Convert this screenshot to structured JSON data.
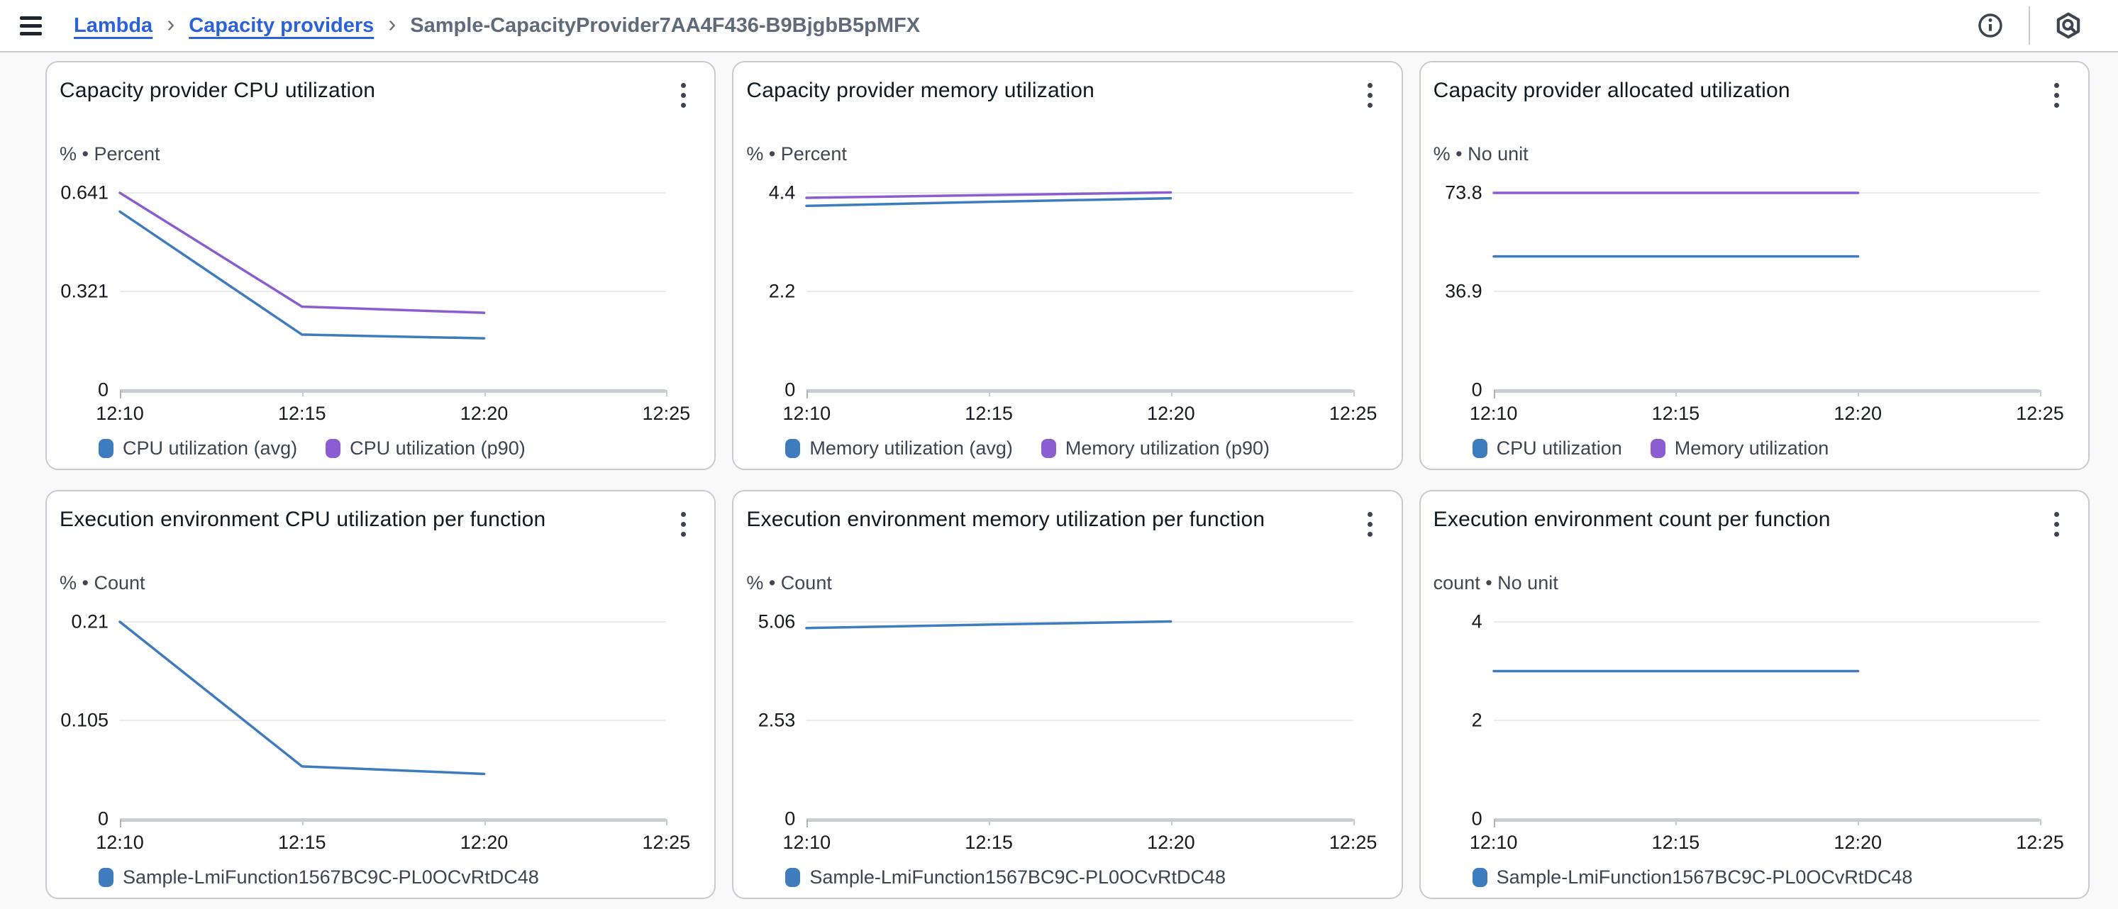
{
  "topbar": {
    "separator": "›",
    "breadcrumb": [
      {
        "label": "Lambda"
      },
      {
        "label": "Capacity providers"
      },
      {
        "label": "Sample-CapacityProvider7AA4F436-B9BjgbB5pMFX"
      }
    ]
  },
  "colors": {
    "link_blue": "#2b62d9",
    "line_blue": "#3e7cbd",
    "line_purple": "#8a5ed0",
    "grid_line": "#e9ebed",
    "axis_line": "#caced2"
  },
  "chart_data": [
    {
      "type": "line",
      "title": "Capacity provider CPU utilization",
      "unit": "% • Percent",
      "y_max": 0.641,
      "y_tick_labels": [
        "0.641",
        "0.321",
        "0"
      ],
      "ylim": [
        0,
        0.641
      ],
      "x_ticks": [
        "12:10",
        "12:15",
        "12:20",
        "12:25"
      ],
      "categories": [
        "12:10",
        "12:15",
        "12:20"
      ],
      "legend_position": "bottom",
      "grid": true,
      "series": [
        {
          "name": "CPU utilization (avg)",
          "color": "#3e7cbd",
          "values": [
            0.58,
            0.18,
            0.168
          ]
        },
        {
          "name": "CPU utilization (p90)",
          "color": "#8a5ed0",
          "values": [
            0.641,
            0.271,
            0.251
          ]
        }
      ]
    },
    {
      "type": "line",
      "title": "Capacity provider memory utilization",
      "unit": "% • Percent",
      "y_max": 4.4,
      "y_tick_labels": [
        "4.4",
        "2.2",
        "0"
      ],
      "ylim": [
        0,
        4.4
      ],
      "x_ticks": [
        "12:10",
        "12:15",
        "12:20",
        "12:25"
      ],
      "categories": [
        "12:10",
        "12:15",
        "12:20"
      ],
      "legend_position": "bottom",
      "grid": true,
      "series": [
        {
          "name": "Memory utilization (avg)",
          "color": "#3e7cbd",
          "values": [
            4.11,
            4.2,
            4.28
          ]
        },
        {
          "name": "Memory utilization (p90)",
          "color": "#8a5ed0",
          "values": [
            4.29,
            4.35,
            4.41
          ]
        }
      ]
    },
    {
      "type": "line",
      "title": "Capacity provider allocated utilization",
      "unit": "% • No unit",
      "y_max": 73.8,
      "y_tick_labels": [
        "73.8",
        "36.9",
        "0"
      ],
      "ylim": [
        0,
        73.8
      ],
      "x_ticks": [
        "12:10",
        "12:15",
        "12:20",
        "12:25"
      ],
      "categories": [
        "12:10",
        "12:15",
        "12:20"
      ],
      "legend_position": "bottom",
      "grid": true,
      "series": [
        {
          "name": "CPU utilization",
          "color": "#3e7cbd",
          "values": [
            50,
            50,
            50
          ]
        },
        {
          "name": "Memory utilization",
          "color": "#8a5ed0",
          "values": [
            73.8,
            73.8,
            73.8
          ]
        }
      ]
    },
    {
      "type": "line",
      "title": "Execution environment CPU utilization per function",
      "unit": "% • Count",
      "y_max": 0.21,
      "y_tick_labels": [
        "0.21",
        "0.105",
        "0"
      ],
      "ylim": [
        0,
        0.21
      ],
      "x_ticks": [
        "12:10",
        "12:15",
        "12:20",
        "12:25"
      ],
      "categories": [
        "12:10",
        "12:15",
        "12:20"
      ],
      "legend_position": "bottom",
      "grid": true,
      "series": [
        {
          "name": "Sample-LmiFunction1567BC9C-PL0OCvRtDC48",
          "color": "#3e7cbd",
          "values": [
            0.21,
            0.056,
            0.048
          ]
        }
      ]
    },
    {
      "type": "line",
      "title": "Execution environment memory utilization per function",
      "unit": "% • Count",
      "y_max": 5.06,
      "y_tick_labels": [
        "5.06",
        "2.53",
        "0"
      ],
      "ylim": [
        0,
        5.06
      ],
      "x_ticks": [
        "12:10",
        "12:15",
        "12:20",
        "12:25"
      ],
      "categories": [
        "12:10",
        "12:15",
        "12:20"
      ],
      "legend_position": "bottom",
      "grid": true,
      "series": [
        {
          "name": "Sample-LmiFunction1567BC9C-PL0OCvRtDC48",
          "color": "#3e7cbd",
          "values": [
            4.9,
            4.99,
            5.07
          ]
        }
      ]
    },
    {
      "type": "line",
      "title": "Execution environment count per function",
      "unit": "count • No unit",
      "y_max": 4,
      "y_tick_labels": [
        "4",
        "2",
        "0"
      ],
      "ylim": [
        0,
        4
      ],
      "x_ticks": [
        "12:10",
        "12:15",
        "12:20",
        "12:25"
      ],
      "categories": [
        "12:10",
        "12:15",
        "12:20"
      ],
      "legend_position": "bottom",
      "grid": true,
      "series": [
        {
          "name": "Sample-LmiFunction1567BC9C-PL0OCvRtDC48",
          "color": "#3e7cbd",
          "values": [
            3,
            3,
            3
          ]
        }
      ]
    }
  ]
}
